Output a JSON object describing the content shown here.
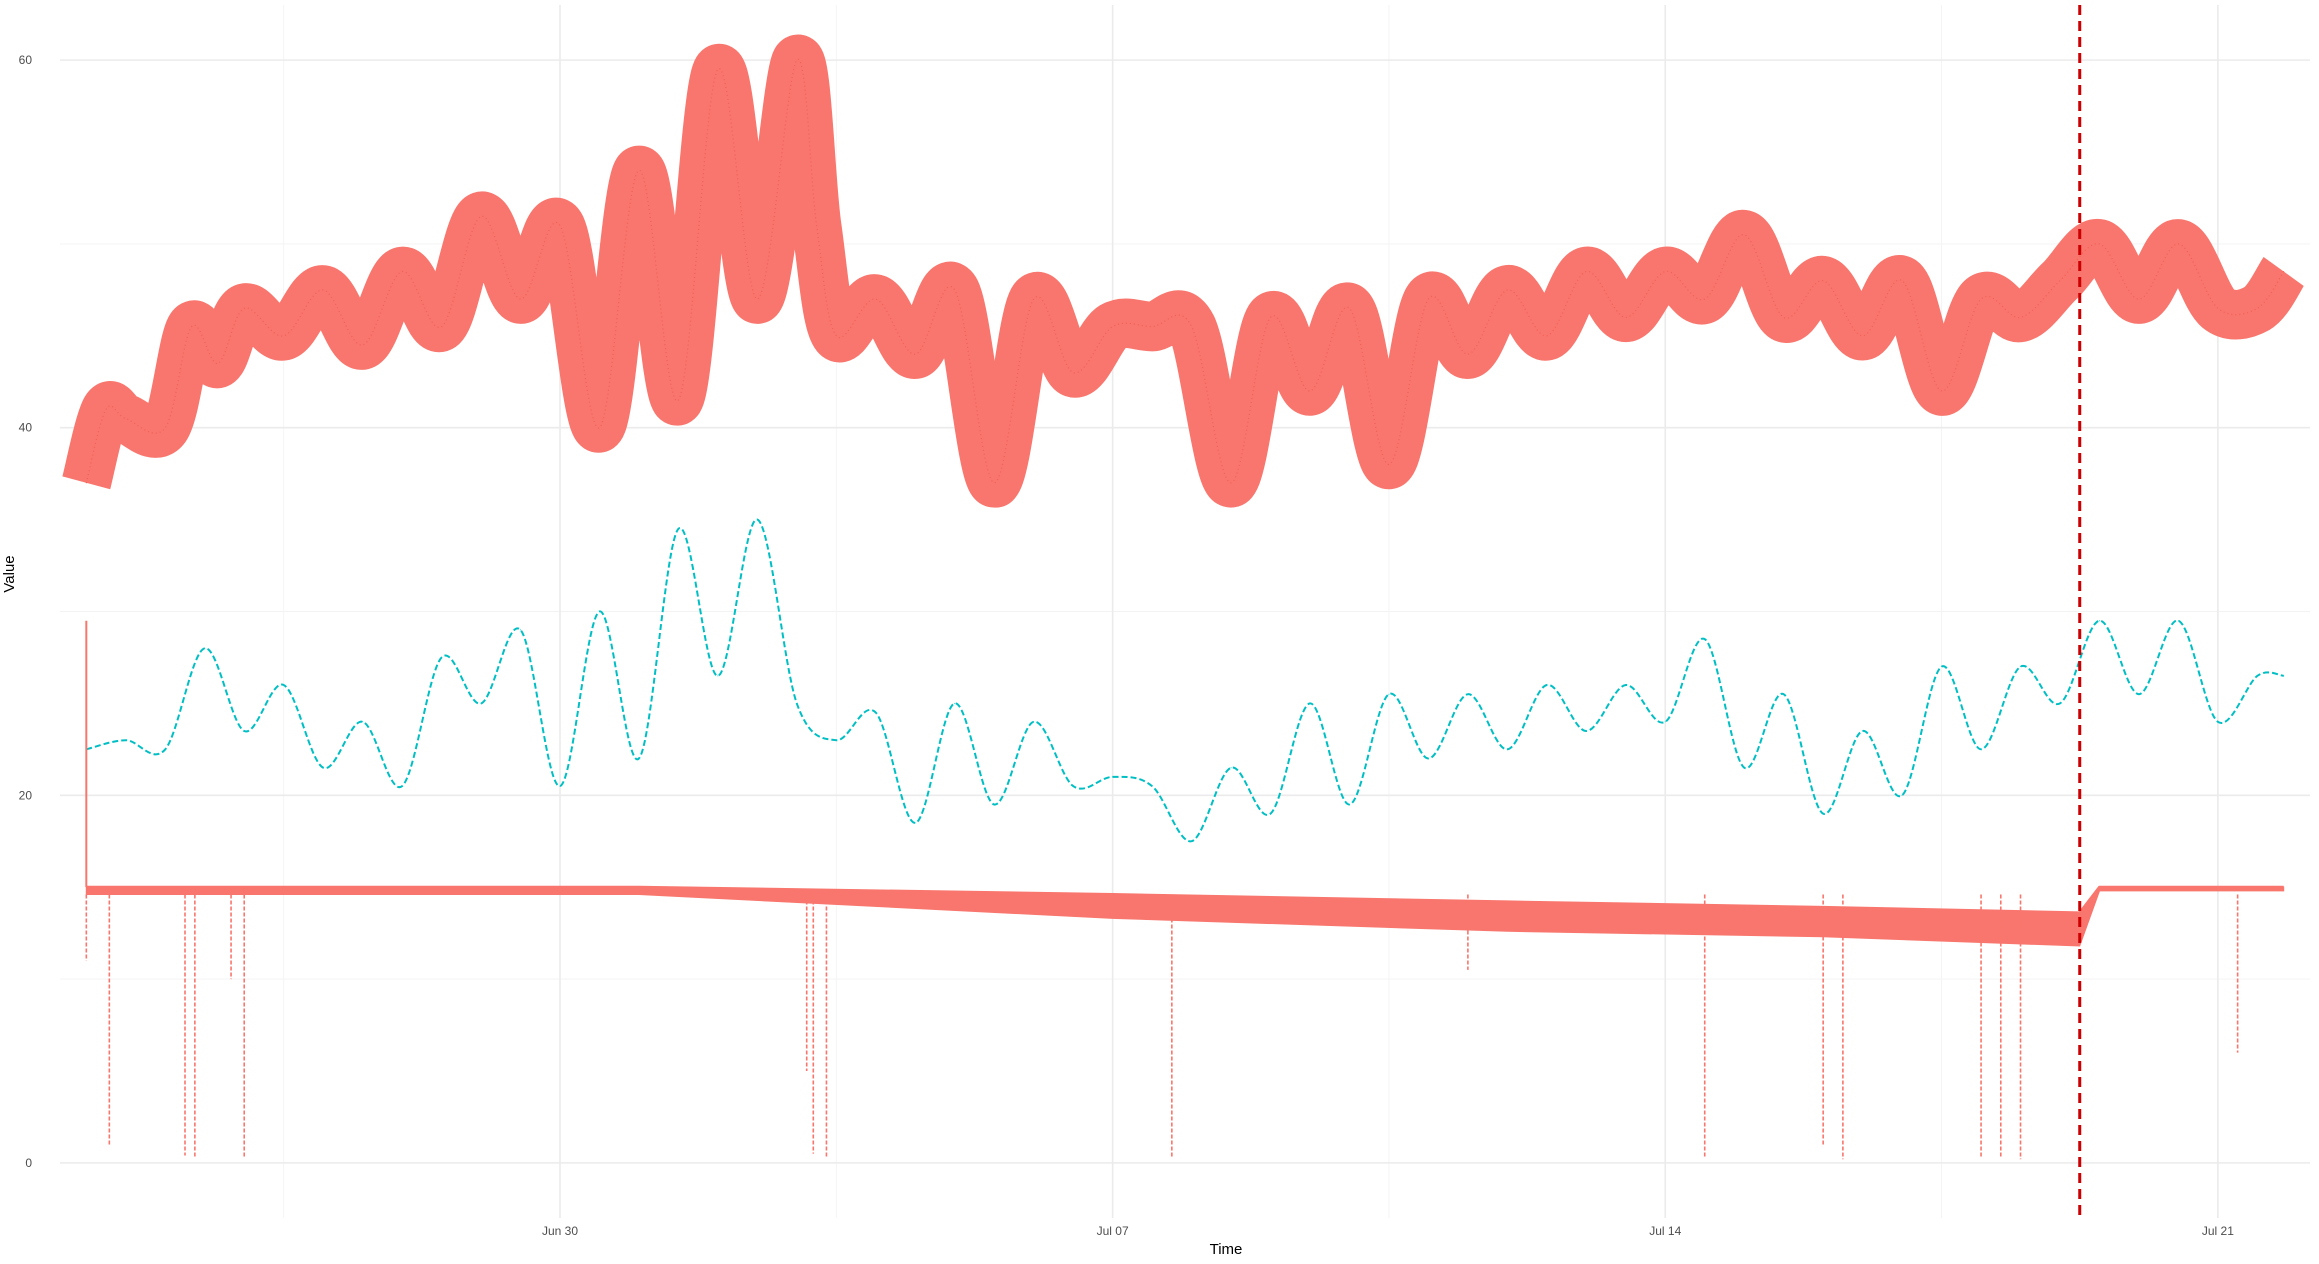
{
  "chart_data": {
    "type": "line",
    "xlabel": "Time",
    "ylabel": "Value",
    "x_ticks": [
      {
        "label": "Jun 30",
        "date": "2024-06-30"
      },
      {
        "label": "Jul 07",
        "date": "2024-07-07"
      },
      {
        "label": "Jul 14",
        "date": "2024-07-14"
      },
      {
        "label": "Jul 21",
        "date": "2024-07-21"
      }
    ],
    "y_ticks": [
      0,
      20,
      40,
      60
    ],
    "ylim": [
      -3,
      63
    ],
    "xlim": [
      "2024-06-23T16:00",
      "2024-07-22T04:00"
    ],
    "grid": true,
    "colors": {
      "series_red": "#F8766D",
      "series_teal": "#00BFC4",
      "vline": "#CC0000"
    },
    "vline": {
      "date": "2024-07-19T06:00",
      "style": "dashed"
    },
    "series": [
      {
        "color": "#F8766D",
        "style": "solid band",
        "dates": [
          "2024-06-24",
          "2024-06-24T06:00",
          "2024-06-24T12:00",
          "2024-06-25",
          "2024-06-25T08:00",
          "2024-06-25T16:00",
          "2024-06-26",
          "2024-06-26T12:00",
          "2024-06-27",
          "2024-06-27T12:00",
          "2024-06-28",
          "2024-06-28T12:00",
          "2024-06-29",
          "2024-06-29T12:00",
          "2024-06-30",
          "2024-06-30T12:00",
          "2024-07-01",
          "2024-07-01T12:00",
          "2024-07-02",
          "2024-07-02T12:00",
          "2024-07-03",
          "2024-07-03T06:00",
          "2024-07-03T12:00",
          "2024-07-04",
          "2024-07-04T12:00",
          "2024-07-05",
          "2024-07-05T12:00",
          "2024-07-06",
          "2024-07-06T12:00",
          "2024-07-07",
          "2024-07-07T12:00",
          "2024-07-08",
          "2024-07-08T12:00",
          "2024-07-09",
          "2024-07-09T12:00",
          "2024-07-10",
          "2024-07-10T12:00",
          "2024-07-11",
          "2024-07-11T12:00",
          "2024-07-12",
          "2024-07-12T12:00",
          "2024-07-13",
          "2024-07-13T12:00",
          "2024-07-14",
          "2024-07-14T12:00",
          "2024-07-15",
          "2024-07-15T12:00",
          "2024-07-16",
          "2024-07-16T12:00",
          "2024-07-17",
          "2024-07-17T12:00",
          "2024-07-18",
          "2024-07-18T12:00",
          "2024-07-19",
          "2024-07-19T12:00",
          "2024-07-20",
          "2024-07-20T12:00",
          "2024-07-21",
          "2024-07-21T12:00",
          "2024-07-21T20:00"
        ],
        "values": [
          37,
          41,
          40.5,
          40,
          45.5,
          43.5,
          46.5,
          45,
          47.5,
          44.5,
          48.5,
          45.5,
          51.5,
          47,
          51,
          40,
          54,
          41.5,
          59.5,
          47,
          60,
          51,
          45,
          47,
          44,
          47.5,
          37,
          47,
          43,
          45.5,
          45.5,
          45.5,
          37,
          46,
          42,
          46.5,
          38,
          47,
          44,
          47.5,
          45,
          48.5,
          46,
          48.5,
          47,
          50.5,
          46,
          48,
          45,
          48,
          42,
          47,
          46,
          48,
          50,
          47,
          50,
          46.5,
          46.5,
          48.5
        ],
        "band_width": [
          2.5,
          1.5,
          1.5,
          1.5,
          2,
          2,
          2,
          2,
          2,
          2,
          2,
          2,
          2.5,
          2.5,
          2.5,
          2.5,
          3,
          3,
          3,
          3,
          3.5,
          3,
          3,
          3,
          3,
          3,
          3,
          3,
          3,
          3,
          3,
          3,
          3,
          3,
          3,
          3,
          3,
          3,
          3,
          3,
          3,
          3,
          3,
          3,
          3,
          3,
          3,
          3,
          3,
          3,
          3,
          3,
          3,
          3,
          3,
          2.5,
          2.5,
          2,
          2,
          2
        ]
      },
      {
        "color": "#00BFC4",
        "style": "dashed",
        "dates": [
          "2024-06-24",
          "2024-06-24T12:00",
          "2024-06-25",
          "2024-06-25T12:00",
          "2024-06-26",
          "2024-06-26T12:00",
          "2024-06-27",
          "2024-06-27T12:00",
          "2024-06-28",
          "2024-06-28T12:00",
          "2024-06-29",
          "2024-06-29T12:00",
          "2024-06-30",
          "2024-06-30T12:00",
          "2024-07-01",
          "2024-07-01T12:00",
          "2024-07-02",
          "2024-07-02T12:00",
          "2024-07-03",
          "2024-07-03T12:00",
          "2024-07-04",
          "2024-07-04T12:00",
          "2024-07-05",
          "2024-07-05T12:00",
          "2024-07-06",
          "2024-07-06T12:00",
          "2024-07-07",
          "2024-07-07T12:00",
          "2024-07-08",
          "2024-07-08T12:00",
          "2024-07-09",
          "2024-07-09T12:00",
          "2024-07-10",
          "2024-07-10T12:00",
          "2024-07-11",
          "2024-07-11T12:00",
          "2024-07-12",
          "2024-07-12T12:00",
          "2024-07-13",
          "2024-07-13T12:00",
          "2024-07-14",
          "2024-07-14T12:00",
          "2024-07-15",
          "2024-07-15T12:00",
          "2024-07-16",
          "2024-07-16T12:00",
          "2024-07-17",
          "2024-07-17T12:00",
          "2024-07-18",
          "2024-07-18T12:00",
          "2024-07-19",
          "2024-07-19T12:00",
          "2024-07-20",
          "2024-07-20T12:00",
          "2024-07-21",
          "2024-07-21T12:00",
          "2024-07-21T20:00"
        ],
        "values": [
          22.5,
          23,
          22.5,
          28,
          23.5,
          26,
          21.5,
          24,
          20.5,
          27.5,
          25,
          29,
          20.5,
          30,
          22,
          34.5,
          26.5,
          35,
          25,
          23,
          24.5,
          18.5,
          25,
          19.5,
          24,
          20.5,
          21,
          20.5,
          17.5,
          21.5,
          19,
          25,
          19.5,
          25.5,
          22,
          25.5,
          22.5,
          26,
          23.5,
          26,
          24,
          28.5,
          21.5,
          25.5,
          19,
          23.5,
          20,
          27,
          22.5,
          27,
          25,
          29.5,
          25.5,
          29.5,
          24,
          26.5,
          26.5
        ]
      },
      {
        "color": "#F8766D",
        "style": "dashed band",
        "dates": [
          "2024-06-24",
          "2024-07-01",
          "2024-07-07",
          "2024-07-12",
          "2024-07-16",
          "2024-07-19T06:00",
          "2024-07-19T12:00",
          "2024-07-21T20:00"
        ],
        "values": [
          15,
          15,
          14.6,
          14.2,
          13.9,
          13.6,
          15,
          15
        ],
        "band_low": [
          14.6,
          14.6,
          13.3,
          12.6,
          12.3,
          11.8,
          14.8,
          14.8
        ],
        "dips": [
          {
            "date": "2024-06-24",
            "value": 11
          },
          {
            "date": "2024-06-24T07:00",
            "value": 1
          },
          {
            "date": "2024-06-25T06:00",
            "value": 0.4
          },
          {
            "date": "2024-06-25T09:00",
            "value": 0.3
          },
          {
            "date": "2024-06-26T00:00",
            "value": 0.3
          },
          {
            "date": "2024-06-25T20:00",
            "value": 10
          },
          {
            "date": "2024-07-03T03:00",
            "value": 5
          },
          {
            "date": "2024-07-03T05:00",
            "value": 0.5
          },
          {
            "date": "2024-07-03T09:00",
            "value": 0.3
          },
          {
            "date": "2024-07-07T18:00",
            "value": 0.3
          },
          {
            "date": "2024-07-11T12:00",
            "value": 10.5
          },
          {
            "date": "2024-07-14T12:00",
            "value": 0.3
          },
          {
            "date": "2024-07-16T00:00",
            "value": 1
          },
          {
            "date": "2024-07-16T06:00",
            "value": 0.2
          },
          {
            "date": "2024-07-18T00:00",
            "value": 0.3
          },
          {
            "date": "2024-07-18T06:00",
            "value": 0.3
          },
          {
            "date": "2024-07-18T12:00",
            "value": 0.2
          },
          {
            "date": "2024-07-21T06:00",
            "value": 6
          }
        ],
        "spike": {
          "date": "2024-06-24",
          "value": 29.5
        }
      }
    ]
  }
}
